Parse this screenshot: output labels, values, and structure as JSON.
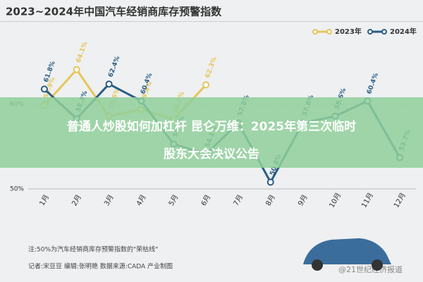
{
  "chart_data": {
    "type": "line",
    "title": "2023~2024年中国汽车经销商库存预警指数",
    "categories": [
      "1月",
      "2月",
      "3月",
      "4月",
      "5月",
      "6月",
      "7月",
      "8月",
      "9月",
      "10月",
      "11月",
      "12月"
    ],
    "series": [
      {
        "name": "2023年",
        "color": "#e6c65a",
        "values": [
          59.9,
          64.1,
          58.6,
          59.4,
          58.2,
          62.3,
          null,
          null,
          null,
          null,
          null,
          null
        ],
        "value_labels": [
          "59.9%",
          "64.1%",
          "58.6%",
          "59.4%",
          "58.2%",
          "62.3%",
          null,
          null,
          null,
          null,
          null,
          null
        ]
      },
      {
        "name": "2024年",
        "color": "#2a5d86",
        "values": [
          61.8,
          58.3,
          62.4,
          60.4,
          55.3,
          54.1,
          57.8,
          50.8,
          57.8,
          58.6,
          60.4,
          53.7
        ],
        "value_labels": [
          "61.8%",
          "58.3%",
          "62.4%",
          "60.4%",
          "55.3%",
          "54.1%",
          "57.8%",
          "50.8%",
          "57.8%",
          "58.6%",
          "60.4%",
          "53.7%"
        ]
      }
    ],
    "ylim": [
      50,
      67
    ],
    "yticks": [
      {
        "value": 50,
        "label": "50%"
      },
      {
        "value": 60,
        "label": "60%"
      }
    ],
    "legend": "top-right"
  },
  "banner": "普通人炒股如何加杠杆 昆仑万维：2025年第三次临时股东大会决议公告",
  "footer": {
    "note": "注:50%为汽车经销商库存预警指数的\"荣枯线\"",
    "credit": "记者:宋豆豆  编辑:张明艳  数据来源:CADA 产业制图",
    "watermark": "@21世纪经济报道"
  }
}
